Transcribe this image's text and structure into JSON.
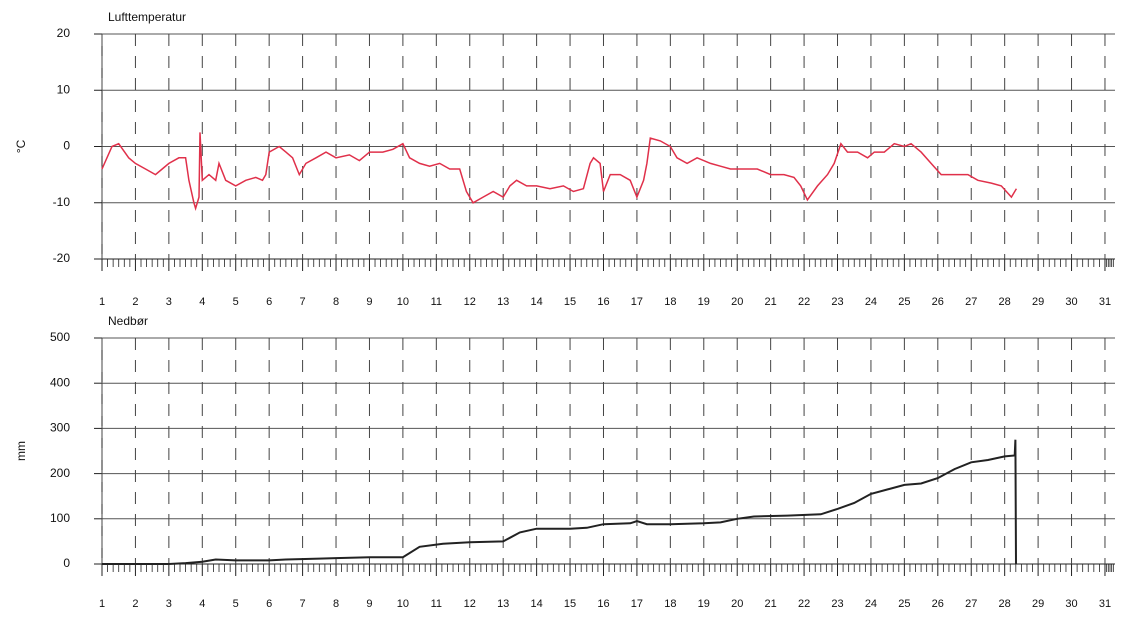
{
  "chart_data": [
    {
      "type": "line",
      "title": "Lufttemperatur",
      "ylabel": "°C",
      "xlim": [
        1,
        31.3
      ],
      "xticks": [
        1,
        2,
        3,
        4,
        5,
        6,
        7,
        8,
        9,
        10,
        11,
        12,
        13,
        14,
        15,
        16,
        17,
        18,
        19,
        20,
        21,
        22,
        23,
        24,
        25,
        26,
        27,
        28,
        29,
        30,
        31
      ],
      "ylim": [
        -20,
        20
      ],
      "yticks": [
        -20,
        -10,
        0,
        10,
        20
      ],
      "grid": true,
      "x": [
        1,
        1.3,
        1.5,
        1.8,
        2,
        2.3,
        2.6,
        2.8,
        3,
        3.3,
        3.5,
        3.6,
        3.75,
        3.8,
        3.9,
        3.93,
        4,
        4.2,
        4.4,
        4.5,
        4.7,
        5,
        5.3,
        5.6,
        5.8,
        5.9,
        6,
        6.3,
        6.5,
        6.7,
        6.9,
        7.1,
        7.4,
        7.7,
        8,
        8.4,
        8.7,
        9,
        9.4,
        9.7,
        10,
        10.2,
        10.5,
        10.8,
        11.1,
        11.4,
        11.7,
        11.9,
        12.1,
        12.4,
        12.7,
        13,
        13.2,
        13.4,
        13.7,
        14,
        14.4,
        14.8,
        15.1,
        15.4,
        15.6,
        15.7,
        15.9,
        16,
        16.2,
        16.5,
        16.8,
        17,
        17.2,
        17.3,
        17.4,
        17.7,
        18,
        18.2,
        18.5,
        18.8,
        19.2,
        19.5,
        19.8,
        20.2,
        20.6,
        21,
        21.4,
        21.7,
        21.9,
        22.1,
        22.4,
        22.7,
        22.9,
        23.1,
        23.3,
        23.6,
        23.9,
        24.1,
        24.4,
        24.7,
        25,
        25.2,
        25.5,
        25.8,
        26.1,
        26.5,
        26.9,
        27.2,
        27.6,
        27.9,
        28.2,
        28.35
      ],
      "series": [
        {
          "color": "#e0304a",
          "values": [
            -4,
            0,
            0.5,
            -2,
            -3,
            -4,
            -5,
            -4,
            -3,
            -2,
            -2,
            -6,
            -10,
            -11,
            -9,
            2.5,
            -6,
            -5,
            -6,
            -3,
            -6,
            -7,
            -6,
            -5.5,
            -6,
            -5,
            -1,
            0,
            -1,
            -2,
            -5,
            -3,
            -2,
            -1,
            -2,
            -1.5,
            -2.5,
            -1,
            -1,
            -0.5,
            0.5,
            -2,
            -3,
            -3.5,
            -3,
            -4,
            -4,
            -8,
            -10,
            -9,
            -8,
            -9,
            -7,
            -6,
            -7,
            -7,
            -7.5,
            -7,
            -8,
            -7.5,
            -3,
            -2,
            -3,
            -8,
            -5,
            -5,
            -6,
            -9,
            -6,
            -3,
            1.5,
            1,
            0,
            -2,
            -3,
            -2,
            -3,
            -3.5,
            -4,
            -4,
            -4,
            -5,
            -5,
            -5.5,
            -7,
            -9.5,
            -7,
            -5,
            -3,
            0.5,
            -1,
            -1,
            -2,
            -1,
            -1,
            0.5,
            0,
            0.5,
            -1,
            -3,
            -5,
            -5,
            -5,
            -6,
            -6.5,
            -7,
            -9,
            -7.5
          ]
        }
      ]
    },
    {
      "type": "line",
      "title": "Nedbør",
      "ylabel": "mm",
      "xlim": [
        1,
        31.3
      ],
      "xticks": [
        1,
        2,
        3,
        4,
        5,
        6,
        7,
        8,
        9,
        10,
        11,
        12,
        13,
        14,
        15,
        16,
        17,
        18,
        19,
        20,
        21,
        22,
        23,
        24,
        25,
        26,
        27,
        28,
        29,
        30,
        31
      ],
      "ylim": [
        0,
        500
      ],
      "yticks": [
        0,
        100,
        200,
        300,
        400,
        500
      ],
      "grid": true,
      "x": [
        1,
        3,
        3.5,
        4,
        4.4,
        5,
        6,
        6.5,
        7.5,
        8,
        9,
        10,
        10.5,
        11.2,
        12,
        13,
        13.5,
        14,
        15,
        15.5,
        16,
        16.8,
        17,
        17.3,
        18,
        19,
        19.5,
        20,
        20.5,
        21.5,
        22.5,
        23,
        23.5,
        24,
        24.5,
        25,
        25.5,
        26,
        26.5,
        27,
        27.5,
        28,
        28.3,
        28.32,
        28.34
      ],
      "series": [
        {
          "color": "#222222",
          "values": [
            0,
            0,
            2,
            5,
            10,
            8,
            8,
            10,
            12,
            13,
            15,
            15,
            38,
            45,
            48,
            50,
            70,
            78,
            78,
            80,
            88,
            90,
            95,
            88,
            88,
            90,
            92,
            100,
            105,
            107,
            110,
            122,
            135,
            155,
            165,
            175,
            178,
            190,
            210,
            225,
            230,
            238,
            240,
            275,
            0
          ]
        }
      ]
    }
  ]
}
